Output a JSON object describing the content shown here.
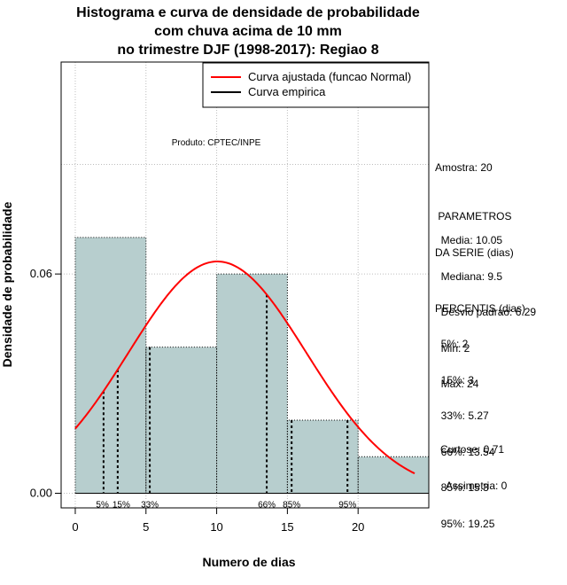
{
  "chart_data": {
    "type": "bar",
    "title_lines": [
      "Histograma e curva de densidade de probabilidade",
      "com chuva acima de 10 mm",
      "no trimestre DJF (1998-2017): Regiao 8"
    ],
    "xlabel": "Numero de dias",
    "ylabel": "Densidade de probabilidade",
    "xlim": [
      -1,
      25
    ],
    "ylim": [
      -0.004,
      0.118
    ],
    "x_ticks": [
      0,
      5,
      10,
      15,
      20
    ],
    "y_ticks": [
      0.0,
      0.06
    ],
    "y_tick_labels": [
      "0.00",
      "0.06"
    ],
    "grid_x": [
      0,
      5,
      10,
      15,
      20
    ],
    "grid_y": [
      0.0,
      0.06
    ],
    "bins": [
      {
        "start": 0,
        "end": 5,
        "density": 0.07
      },
      {
        "start": 5,
        "end": 10,
        "density": 0.04
      },
      {
        "start": 10,
        "end": 15,
        "density": 0.06
      },
      {
        "start": 15,
        "end": 20,
        "density": 0.02
      },
      {
        "start": 20,
        "end": 25,
        "density": 0.01
      }
    ],
    "normal_curve": {
      "mean": 10.05,
      "sd": 6.29,
      "x_from": 0,
      "x_to": 24,
      "color": "#ff0000"
    },
    "percentile_lines": [
      {
        "label": "5%",
        "x": 2
      },
      {
        "label": "15%",
        "x": 3
      },
      {
        "label": "33%",
        "x": 5.27
      },
      {
        "label": "66%",
        "x": 13.54
      },
      {
        "label": "85%",
        "x": 15.3
      },
      {
        "label": "95%",
        "x": 19.25
      }
    ],
    "bar_color": "#b7cece",
    "legend": [
      {
        "label": "Curva ajustada (funcao Normal)",
        "color": "#ff0000"
      },
      {
        "label": "Curva empirica",
        "color": "#000000"
      }
    ],
    "legend_position": "top-right",
    "credit": "Produto: CPTEC/INPE"
  },
  "side_panel": {
    "sample": "Amostra: 20",
    "params_header": [
      " PARAMETROS",
      "DA SERIE (dias)"
    ],
    "params": [
      "  Media: 10.05",
      "  Mediana: 9.5",
      "  Desvio padrao: 6.29",
      "  Min: 2",
      "  Max: 24"
    ],
    "percentis_header": "PERCENTIS (dias)",
    "percentis": [
      "  5%: 2",
      "  15%: 3",
      "  33%: 5.27",
      "  66%: 13.54",
      "  85%: 15.3",
      "  95%: 19.25"
    ],
    "shape": [
      "Curtose: 0.71",
      "  Assimetria: 0"
    ]
  }
}
